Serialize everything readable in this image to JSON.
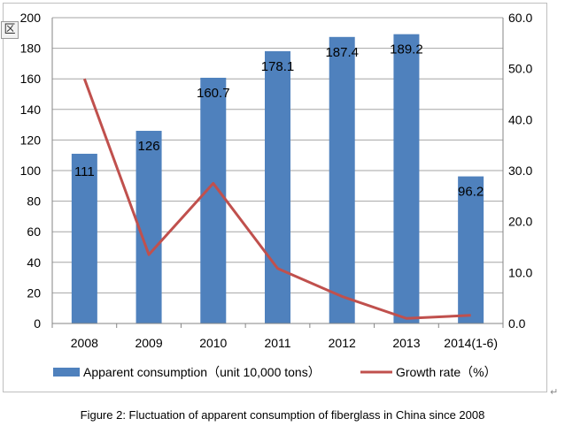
{
  "caption": "Figure 2: Fluctuation of apparent consumption of fiberglass in China since 2008",
  "corner_icon_glyph": "区",
  "return_mark": "↵",
  "colors": {
    "bar": "#4f81bd",
    "line": "#c0504d",
    "grid": "#a6a6a6",
    "frame": "#bfbfbf"
  },
  "chart_data": {
    "type": "bar",
    "categories": [
      "2008",
      "2009",
      "2010",
      "2011",
      "2012",
      "2013",
      "2014(1-6)"
    ],
    "series": [
      {
        "name": "Apparent consumption（unit 10,000 tons）",
        "type": "bar",
        "axis": "left",
        "values": [
          111,
          126,
          160.7,
          178.1,
          187.4,
          189.2,
          96.2
        ],
        "labels": [
          "111",
          "126",
          "160.7",
          "178.1",
          "187.4",
          "189.2",
          "96.2"
        ]
      },
      {
        "name": "Growth rate（%）",
        "type": "line",
        "axis": "right",
        "values": [
          48.0,
          13.5,
          27.5,
          10.8,
          5.3,
          1.0,
          1.6
        ]
      }
    ],
    "y_left": {
      "lim": [
        0,
        200
      ],
      "ticks": [
        "0",
        "20",
        "40",
        "60",
        "80",
        "100",
        "120",
        "140",
        "160",
        "180",
        "200"
      ]
    },
    "y_right": {
      "lim": [
        0,
        60
      ],
      "ticks": [
        "0.0",
        "10.0",
        "20.0",
        "30.0",
        "40.0",
        "50.0",
        "60.0"
      ]
    },
    "grid": true,
    "legend_position": "bottom"
  }
}
